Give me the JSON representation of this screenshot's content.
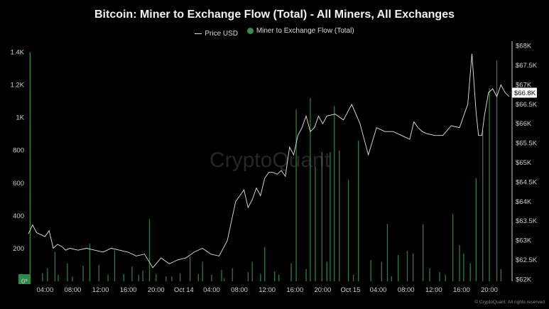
{
  "title": "Bitcoin: Miner to Exchange Flow (Total) - All Miners, All Exchanges",
  "legend": [
    {
      "label": "Price USD",
      "type": "line",
      "color": "#e0e0e0"
    },
    {
      "label": "Miner to Exchange Flow (Total)",
      "type": "bar",
      "color": "#3a8a4e"
    }
  ],
  "watermark": "CryptoQuant",
  "footer": "© CryptoQuant. All rights reserved",
  "colors": {
    "background": "#000000",
    "bars": "#2f7a40",
    "price": "#e6e6e6",
    "last_bar": "#2e8b47"
  },
  "chart_data": {
    "type": "bar+line",
    "x_ticks": [
      "04:00",
      "08:00",
      "12:00",
      "16:00",
      "20:00",
      "Oct 14",
      "04:00",
      "08:00",
      "12:00",
      "16:00",
      "20:00",
      "Oct 15",
      "04:00",
      "08:00",
      "12:00",
      "16:00",
      "20:00"
    ],
    "left_axis": {
      "ticks": [
        "0*",
        "200",
        "400",
        "600",
        "800",
        "1K",
        "1.2K",
        "1.4K"
      ],
      "tick_values": [
        0,
        200,
        400,
        600,
        800,
        1000,
        1200,
        1400
      ],
      "range": [
        0,
        1450
      ]
    },
    "right_axis": {
      "ticks": [
        "$62K",
        "$62.5K",
        "$63K",
        "$63.5K",
        "$64K",
        "$64.5K",
        "$65K",
        "$65.5K",
        "$66K",
        "$66.5K",
        "$67K",
        "$67.5K",
        "$68K"
      ],
      "tick_values": [
        62000,
        62500,
        63000,
        63500,
        64000,
        64500,
        65000,
        65500,
        66000,
        66500,
        67000,
        67500,
        68000
      ],
      "range": [
        61950,
        68050
      ],
      "current_label": "$66.8K",
      "current_value": 66800
    },
    "x_range_hours": [
      0,
      58
    ],
    "series": [
      {
        "name": "Miner to Exchange Flow (Total)",
        "type": "bar",
        "x_hours": [
          0.2,
          1.7,
          2.3,
          3.2,
          3.6,
          4.7,
          5.3,
          6.6,
          7.4,
          8.5,
          9.6,
          10.4,
          11.5,
          12.5,
          13.3,
          13.8,
          14.6,
          15.4,
          16.6,
          17.3,
          18.3,
          19.5,
          20.5,
          21.0,
          22.1,
          23.3,
          23.6,
          24.6,
          26.5,
          27.0,
          28.0,
          28.5,
          29.7,
          30.2,
          31.7,
          32.3,
          33.5,
          34.0,
          34.6,
          35.4,
          36.0,
          36.4,
          36.9,
          37.5,
          38.6,
          39.2,
          39.8,
          41.3,
          42.6,
          43.3,
          43.8,
          44.6,
          45.7,
          46.4,
          47.6,
          48.4,
          49.6,
          50.3,
          51.2,
          52.0,
          52.5,
          53.3,
          54.0,
          54.8,
          55.6,
          56.5,
          57.0
        ],
        "values": [
          1400,
          50,
          80,
          180,
          40,
          110,
          30,
          95,
          230,
          100,
          40,
          190,
          45,
          90,
          40,
          65,
          380,
          45,
          30,
          30,
          50,
          150,
          45,
          120,
          40,
          70,
          20,
          80,
          55,
          120,
          45,
          210,
          60,
          40,
          110,
          1050,
          75,
          1120,
          700,
          790,
          120,
          790,
          1070,
          800,
          620,
          40,
          860,
          130,
          120,
          350,
          30,
          160,
          185,
          170,
          350,
          80,
          55,
          40,
          410,
          220,
          170,
          110,
          630,
          920,
          1180,
          1350,
          75
        ]
      },
      {
        "name": "Price USD",
        "type": "line",
        "x_hours": [
          0,
          0.5,
          1,
          1.5,
          2,
          2.5,
          3,
          3.5,
          4,
          4.5,
          5,
          6,
          7,
          8,
          9,
          10,
          11,
          12,
          13,
          14,
          15,
          16,
          17,
          18,
          19,
          20,
          21,
          22,
          23,
          24,
          25,
          26,
          26.5,
          27,
          27.5,
          28,
          28.5,
          29,
          29.5,
          30,
          30.5,
          31,
          31.5,
          32,
          32.5,
          33,
          33.5,
          34,
          34.5,
          35,
          35.5,
          36,
          37,
          38,
          39,
          40,
          41,
          42,
          43,
          44,
          45,
          46,
          46.5,
          47,
          47.5,
          48,
          49,
          50,
          51,
          52,
          53,
          53.5,
          54,
          54.3,
          54.7,
          55,
          55.5,
          56,
          56.5,
          57,
          57.5,
          58
        ],
        "values": [
          63170,
          63400,
          63200,
          63150,
          63100,
          63250,
          62800,
          62900,
          62850,
          62750,
          62800,
          62750,
          62800,
          62750,
          62700,
          62800,
          62750,
          62700,
          62600,
          62650,
          62300,
          62550,
          62400,
          62500,
          62550,
          62700,
          62800,
          62650,
          62600,
          63000,
          64000,
          64300,
          63850,
          64050,
          64350,
          64150,
          64600,
          64750,
          64750,
          64700,
          64800,
          64650,
          65400,
          65200,
          65700,
          65900,
          66200,
          65800,
          65900,
          66200,
          66000,
          66200,
          66250,
          66100,
          66500,
          66000,
          65200,
          65900,
          65800,
          65800,
          65700,
          65600,
          66050,
          65900,
          65800,
          65750,
          65700,
          65700,
          65950,
          65900,
          66500,
          67800,
          66300,
          65700,
          65700,
          66200,
          66800,
          66900,
          66700,
          67000,
          66800,
          66700
        ]
      }
    ]
  }
}
